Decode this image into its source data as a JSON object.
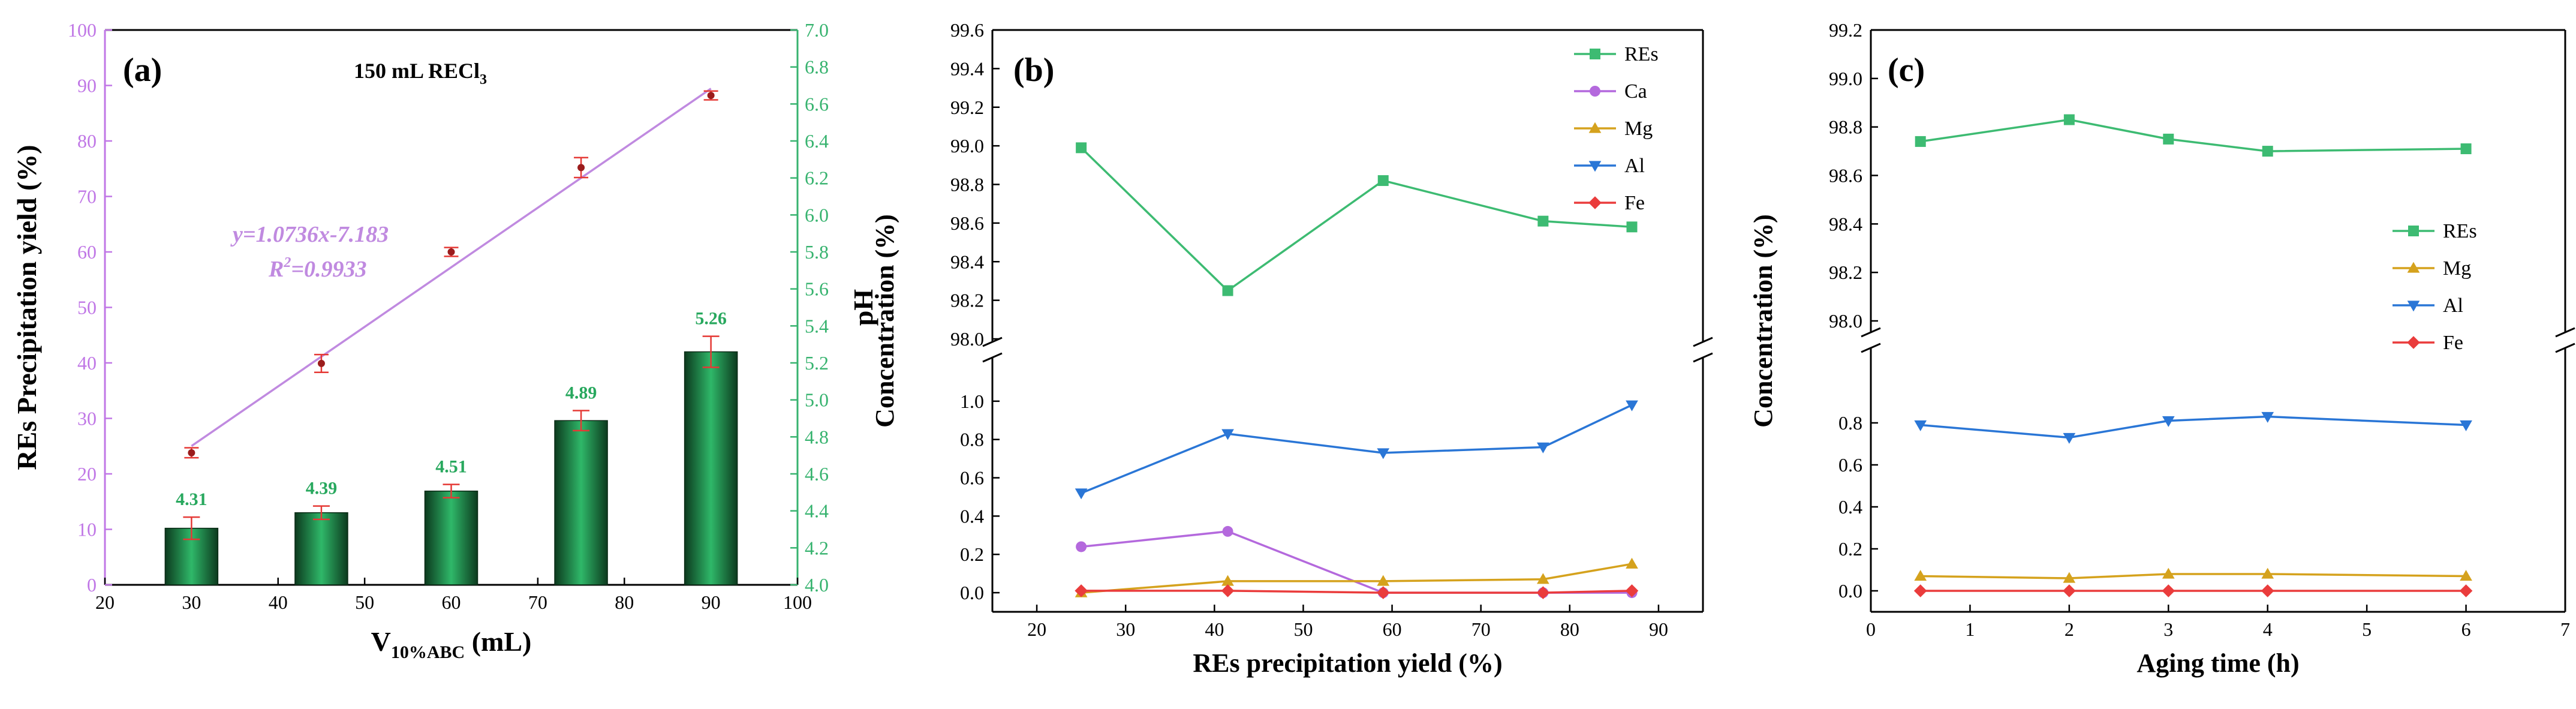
{
  "chart_data": [
    {
      "type": "bar",
      "panel_label": "(a)",
      "annotation_title": "150 mL RECl",
      "annotation_title_sub": "3",
      "xlabel_main": "V",
      "xlabel_sub": "10%ABC",
      "xlabel_unit": " (mL)",
      "ylabel": "REs Precipitation yield (%)",
      "y2label": "pH",
      "xlim": [
        20,
        100
      ],
      "ylim": [
        0,
        100
      ],
      "y2lim": [
        4.0,
        7.0
      ],
      "x_ticks": [
        "20",
        "30",
        "40",
        "50",
        "60",
        "70",
        "80",
        "90",
        "100"
      ],
      "y_ticks": [
        "0",
        "10",
        "20",
        "30",
        "40",
        "50",
        "60",
        "70",
        "80",
        "90",
        "100"
      ],
      "y2_ticks": [
        "4.0",
        "4.2",
        "4.4",
        "4.6",
        "4.8",
        "5.0",
        "5.2",
        "5.4",
        "5.6",
        "5.8",
        "6.0",
        "6.2",
        "6.4",
        "6.6",
        "6.8",
        "7.0"
      ],
      "bars": {
        "x": [
          30,
          45,
          60,
          75,
          90
        ],
        "values": [
          10.2,
          13.0,
          16.9,
          29.6,
          42.0
        ],
        "errors": [
          2.0,
          1.2,
          1.2,
          1.8,
          2.8
        ],
        "labels": [
          "4.31",
          "4.39",
          "4.51",
          "4.89",
          "5.26"
        ]
      },
      "points": {
        "x": [
          30,
          45,
          60,
          75,
          90
        ],
        "values": [
          23.8,
          39.9,
          60.0,
          75.2,
          88.2
        ],
        "errors": [
          0.9,
          1.6,
          0.8,
          1.8,
          0.8
        ]
      },
      "fit": {
        "equation": "y=1.0736x-7.183",
        "r2": "R",
        "r2_sup": "2",
        "r2_value": "=0.9933",
        "slope": 1.0736,
        "intercept": -7.183
      },
      "colors": {
        "bar_dark": "#0c3a1e",
        "bar_light": "#2fb869",
        "fit_line": "#c08ae0",
        "point": "#9b1c1c",
        "error": "#e53935",
        "left_axis": "#c077e6",
        "right_axis": "#37b36f",
        "label_green": "#28a85e"
      }
    },
    {
      "type": "line",
      "panel_label": "(b)",
      "xlabel": "REs precipitation yield (%)",
      "ylabel": "Concentration (%)",
      "xlim": [
        15,
        95
      ],
      "x_ticks": [
        "20",
        "30",
        "40",
        "50",
        "60",
        "70",
        "80",
        "90"
      ],
      "upper_ylim": [
        98.0,
        99.6
      ],
      "upper_ticks": [
        "98.0",
        "98.2",
        "98.4",
        "98.6",
        "98.8",
        "99.0",
        "99.2",
        "99.4",
        "99.6"
      ],
      "lower_ylim": [
        -0.1,
        1.2
      ],
      "lower_ticks": [
        "0.0",
        "0.2",
        "0.4",
        "0.6",
        "0.8",
        "1.0"
      ],
      "x": [
        25,
        41.5,
        59,
        77,
        87
      ],
      "series": [
        {
          "name": "REs",
          "color": "#3dbb72",
          "marker": "square",
          "axis": "upper",
          "values": [
            98.99,
            98.25,
            98.82,
            98.61,
            98.58
          ]
        },
        {
          "name": "Ca",
          "color": "#b469dd",
          "marker": "circle",
          "axis": "lower",
          "values": [
            0.24,
            0.32,
            0.0,
            0.0,
            0.0
          ]
        },
        {
          "name": "Mg",
          "color": "#d5a21d",
          "marker": "triangle-up",
          "axis": "lower",
          "values": [
            0.0,
            0.06,
            0.06,
            0.07,
            0.15
          ]
        },
        {
          "name": "Al",
          "color": "#2a76d6",
          "marker": "triangle-down",
          "axis": "lower",
          "values": [
            0.52,
            0.83,
            0.73,
            0.76,
            0.98
          ]
        },
        {
          "name": "Fe",
          "color": "#ea3c3c",
          "marker": "diamond",
          "axis": "lower",
          "values": [
            0.01,
            0.01,
            0.0,
            0.0,
            0.01
          ]
        }
      ]
    },
    {
      "type": "line",
      "panel_label": "(c)",
      "xlabel": "Aging time (h)",
      "ylabel": "Concentration (%)",
      "xlim": [
        0,
        7
      ],
      "x_ticks": [
        "0",
        "1",
        "2",
        "3",
        "4",
        "5",
        "6",
        "7"
      ],
      "upper_ylim": [
        98.0,
        99.2
      ],
      "upper_ticks": [
        "98.0",
        "98.2",
        "98.4",
        "98.6",
        "98.8",
        "99.0",
        "99.2"
      ],
      "lower_ylim": [
        -0.1,
        1.1
      ],
      "lower_ticks": [
        "0.0",
        "0.2",
        "0.4",
        "0.6",
        "0.8"
      ],
      "x": [
        0.5,
        2,
        3,
        4,
        6
      ],
      "series": [
        {
          "name": "REs",
          "color": "#3dbb72",
          "marker": "square",
          "axis": "upper",
          "values": [
            98.74,
            98.83,
            98.75,
            98.7,
            98.71
          ]
        },
        {
          "name": "Mg",
          "color": "#d5a21d",
          "marker": "triangle-up",
          "axis": "lower",
          "values": [
            0.07,
            0.06,
            0.08,
            0.08,
            0.07
          ]
        },
        {
          "name": "Al",
          "color": "#2a76d6",
          "marker": "triangle-down",
          "axis": "lower",
          "values": [
            0.79,
            0.73,
            0.81,
            0.83,
            0.79
          ]
        },
        {
          "name": "Fe",
          "color": "#ea3c3c",
          "marker": "diamond",
          "axis": "lower",
          "values": [
            0.0,
            0.0,
            0.0,
            0.0,
            0.0
          ]
        }
      ]
    }
  ]
}
